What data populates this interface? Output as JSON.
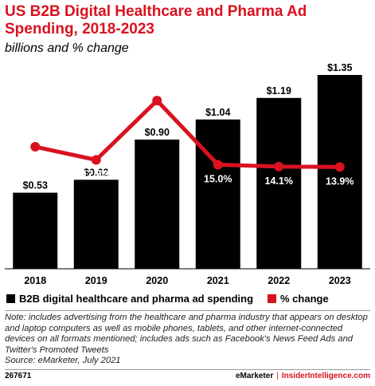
{
  "title": "US B2B Digital Healthcare and Pharma Ad Spending, 2018-2023",
  "subtitle": "billions and % change",
  "colors": {
    "bar": "#000000",
    "line": "#d9121f",
    "title": "#d9121f"
  },
  "chart_data": {
    "type": "bar",
    "categories": [
      "2018",
      "2019",
      "2020",
      "2021",
      "2022",
      "2023"
    ],
    "series": [
      {
        "name": "B2B digital healthcare and pharma ad spending",
        "type": "bar",
        "values": [
          0.53,
          0.62,
          0.9,
          1.04,
          1.19,
          1.35
        ],
        "labels": [
          "$0.53",
          "$0.62",
          "$0.90",
          "$1.04",
          "$1.19",
          "$1.35"
        ]
      },
      {
        "name": "% change",
        "type": "line",
        "values": [
          23.6,
          17.3,
          45.8,
          15.0,
          14.1,
          13.9
        ],
        "labels": [
          "23.6%",
          "17.3%",
          "45.8%",
          "15.0%",
          "14.1%",
          "13.9%"
        ]
      }
    ],
    "bar_ylim": [
      0,
      1.45
    ],
    "line_ylim": [
      -35,
      65
    ],
    "legend_position": "bottom"
  },
  "note": "Note: includes advertising from the healthcare and pharma industry that appears on desktop and laptop computers as well as mobile phones, tablets, and other internet-connected devices on all formats mentioned; includes ads such as Facebook's News Feed Ads and Twitter's Promoted Tweets",
  "source": "Source: eMarketer, July 2021",
  "footer": {
    "id": "267671",
    "brand1": "eMarketer",
    "separator": "|",
    "brand2": "InsiderIntelligence.com"
  }
}
